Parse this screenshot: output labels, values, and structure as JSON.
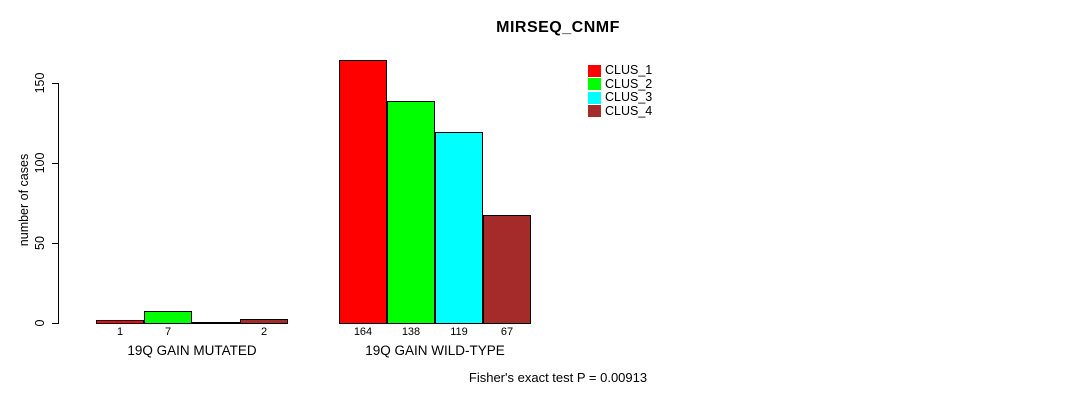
{
  "title": "MIRSEQ_CNMF",
  "caption": "Fisher's exact test P = 0.00913",
  "chart_data": {
    "type": "bar",
    "title": "MIRSEQ_CNMF",
    "xlabel": "",
    "ylabel": "number of cases",
    "categories": [
      "19Q GAIN MUTATED",
      "19Q GAIN WILD-TYPE"
    ],
    "series": [
      {
        "name": "CLUS_1",
        "color": "#FF0000",
        "values": [
          1,
          164
        ]
      },
      {
        "name": "CLUS_2",
        "color": "#00FF00",
        "values": [
          7,
          138
        ]
      },
      {
        "name": "CLUS_3",
        "color": "#00FFFF",
        "values": [
          0,
          119
        ]
      },
      {
        "name": "CLUS_4",
        "color": "#A52A2A",
        "values": [
          2,
          67
        ]
      }
    ],
    "bar_labels": [
      [
        "1",
        "7",
        "",
        "2"
      ],
      [
        "164",
        "138",
        "119",
        "67"
      ]
    ],
    "yticks": [
      0,
      50,
      100,
      150
    ],
    "ylim": [
      0,
      165
    ],
    "grid": false,
    "legend_position": "top-right",
    "annotation": "Fisher's exact test P = 0.00913"
  },
  "colors": {
    "background": "#FFFFFF",
    "axis": "#000000",
    "text": "#000000"
  }
}
